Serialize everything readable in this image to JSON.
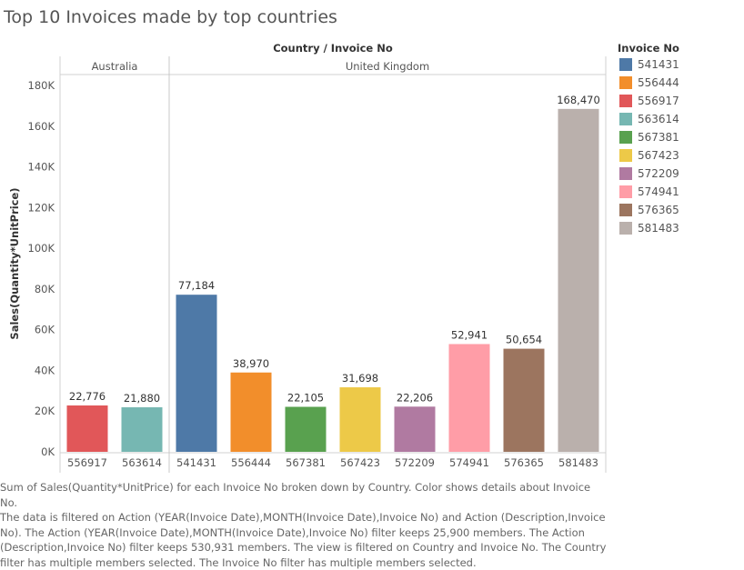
{
  "title": "Top 10 Invoices made by top countries",
  "header": "Country / Invoice No",
  "legend_title": "Invoice No",
  "footer_lines": [
    "Sum of Sales(Quantity*UnitPrice) for each Invoice No broken down by Country.  Color shows details about Invoice No.",
    "The data is filtered on Action (YEAR(Invoice Date),MONTH(Invoice Date),Invoice No) and Action (Description,Invoice",
    "No). The Action (YEAR(Invoice Date),MONTH(Invoice Date),Invoice No) filter keeps 25,900 members. The Action",
    "(Description,Invoice No) filter keeps 530,931 members. The view is filtered on Country and Invoice No. The Country",
    "filter has multiple members selected. The Invoice No filter has multiple members selected."
  ],
  "legend": [
    {
      "label": "541431",
      "color": "#4e79a7"
    },
    {
      "label": "556444",
      "color": "#f28e2b"
    },
    {
      "label": "556917",
      "color": "#e15759"
    },
    {
      "label": "563614",
      "color": "#76b7b2"
    },
    {
      "label": "567381",
      "color": "#59a14f"
    },
    {
      "label": "567423",
      "color": "#edc948"
    },
    {
      "label": "572209",
      "color": "#b07aa1"
    },
    {
      "label": "574941",
      "color": "#ff9da7"
    },
    {
      "label": "576365",
      "color": "#9c755f"
    },
    {
      "label": "581483",
      "color": "#bab0ac"
    }
  ],
  "chart_data": {
    "type": "bar",
    "title": "Top 10 Invoices made by top countries",
    "xlabel": "Country / Invoice No",
    "ylabel": "Sales(Quantity*UnitPrice)",
    "ylim": [
      0,
      180000
    ],
    "yticks": [
      0,
      20000,
      40000,
      60000,
      80000,
      100000,
      120000,
      140000,
      160000,
      180000
    ],
    "ytick_labels": [
      "0K",
      "20K",
      "40K",
      "60K",
      "80K",
      "100K",
      "120K",
      "140K",
      "160K",
      "180K"
    ],
    "grid": false,
    "legend_position": "right",
    "groups": [
      {
        "name": "Australia",
        "categories": [
          "556917",
          "563614"
        ],
        "values": [
          22776,
          21880
        ],
        "value_labels": [
          "22,776",
          "21,880"
        ]
      },
      {
        "name": "United Kingdom",
        "categories": [
          "541431",
          "556444",
          "567381",
          "567423",
          "572209",
          "574941",
          "576365",
          "581483"
        ],
        "values": [
          77184,
          38970,
          22105,
          31698,
          22206,
          52941,
          50654,
          168470
        ],
        "value_labels": [
          "77,184",
          "38,970",
          "22,105",
          "31,698",
          "22,206",
          "52,941",
          "50,654",
          "168,470"
        ]
      }
    ]
  }
}
